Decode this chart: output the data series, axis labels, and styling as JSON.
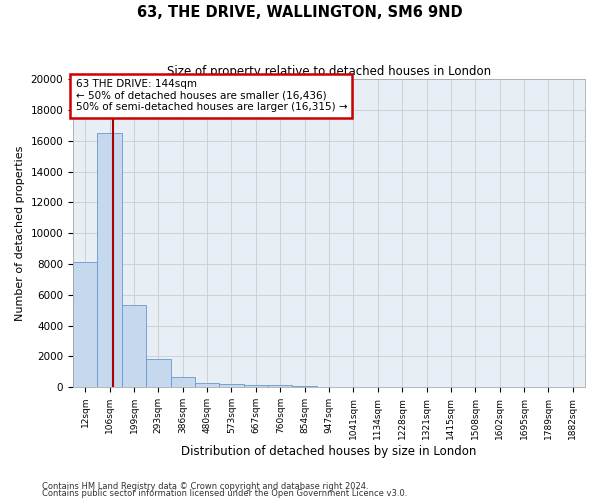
{
  "title": "63, THE DRIVE, WALLINGTON, SM6 9ND",
  "subtitle": "Size of property relative to detached houses in London",
  "xlabel": "Distribution of detached houses by size in London",
  "ylabel": "Number of detached properties",
  "bar_labels": [
    "12sqm",
    "106sqm",
    "199sqm",
    "293sqm",
    "386sqm",
    "480sqm",
    "573sqm",
    "667sqm",
    "760sqm",
    "854sqm",
    "947sqm",
    "1041sqm",
    "1134sqm",
    "1228sqm",
    "1321sqm",
    "1415sqm",
    "1508sqm",
    "1602sqm",
    "1695sqm",
    "1789sqm",
    "1882sqm"
  ],
  "bar_values": [
    8100,
    16500,
    5300,
    1800,
    650,
    280,
    200,
    165,
    130,
    100,
    0,
    0,
    0,
    0,
    0,
    0,
    0,
    0,
    0,
    0,
    0
  ],
  "bar_color": "#c5d8ee",
  "bar_edge_color": "#6699cc",
  "grid_color": "#cccccc",
  "vline_x": 1.15,
  "vline_color": "#aa0000",
  "ylim": [
    0,
    20000
  ],
  "yticks": [
    0,
    2000,
    4000,
    6000,
    8000,
    10000,
    12000,
    14000,
    16000,
    18000,
    20000
  ],
  "annotation_text": "63 THE DRIVE: 144sqm\n← 50% of detached houses are smaller (16,436)\n50% of semi-detached houses are larger (16,315) →",
  "annotation_box_facecolor": "#ffffff",
  "annotation_box_edgecolor": "#cc0000",
  "footnote1": "Contains HM Land Registry data © Crown copyright and database right 2024.",
  "footnote2": "Contains public sector information licensed under the Open Government Licence v3.0.",
  "bg_color": "#e8eef5"
}
